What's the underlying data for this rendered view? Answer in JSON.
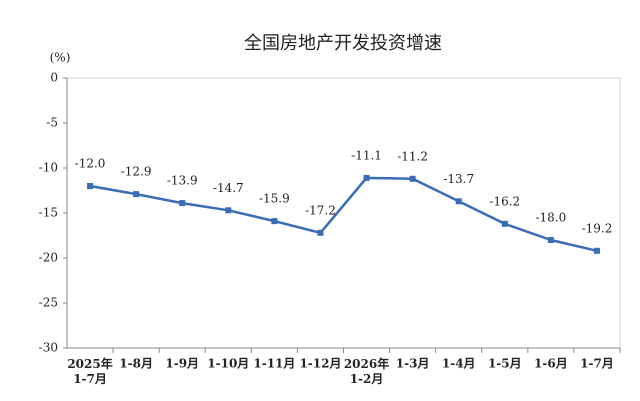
{
  "chart_data": {
    "type": "line",
    "title": "全国房地产开发投资增速",
    "y_label": "(%)",
    "categories": [
      "2025年\n1-7月",
      "1-8月",
      "1-9月",
      "1-10月",
      "1-11月",
      "1-12月",
      "2026年\n1-2月",
      "1-3月",
      "1-4月",
      "1-5月",
      "1-6月",
      "1-7月"
    ],
    "series": [
      {
        "name": "全国房地产开发投资增速",
        "color": "#3a6db5",
        "values": [
          -12.0,
          -12.9,
          -13.9,
          -14.7,
          -15.9,
          -17.2,
          -11.1,
          -11.2,
          -13.7,
          -16.2,
          -18.0,
          -19.2
        ],
        "value_labels": [
          "-12.0",
          "-12.9",
          "-13.9",
          "-14.7",
          "-15.9",
          "-17.2",
          "-11.1",
          "-11.2",
          "-13.7",
          "-16.2",
          "-18.0",
          "-19.2"
        ]
      }
    ],
    "ylim": [
      -30,
      0
    ],
    "yticks": [
      0,
      -5,
      -10,
      -15,
      -20,
      -25,
      -30
    ],
    "grid": false
  }
}
